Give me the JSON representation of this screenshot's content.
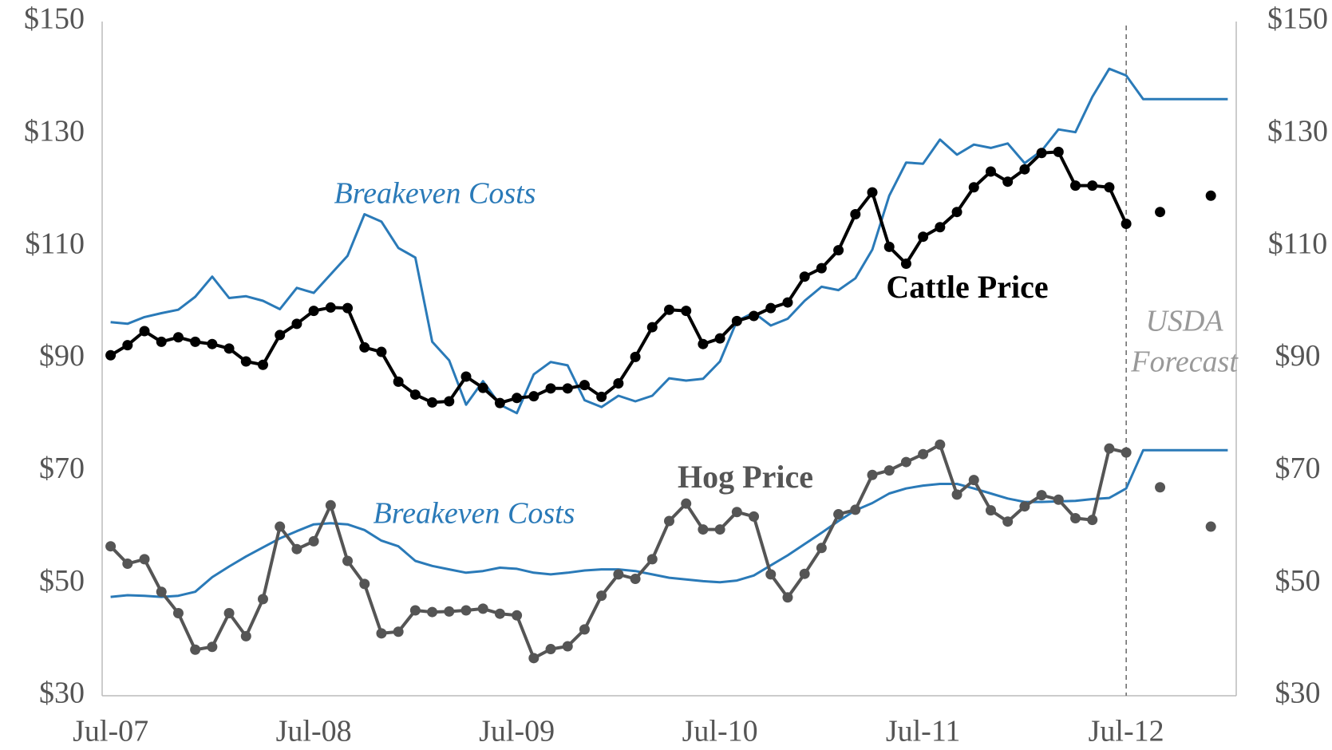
{
  "chart_data": {
    "type": "line",
    "categories": [
      "Jul-07",
      null,
      null,
      null,
      null,
      null,
      null,
      null,
      null,
      null,
      null,
      null,
      "Jul-08",
      null,
      null,
      null,
      null,
      null,
      null,
      null,
      null,
      null,
      null,
      null,
      "Jul-09",
      null,
      null,
      null,
      null,
      null,
      null,
      null,
      null,
      null,
      null,
      null,
      "Jul-10",
      null,
      null,
      null,
      null,
      null,
      null,
      null,
      null,
      null,
      null,
      null,
      "Jul-11",
      null,
      null,
      null,
      null,
      null,
      null,
      null,
      null,
      null,
      null,
      null,
      "Jul-12",
      null,
      null,
      null,
      null,
      null,
      null
    ],
    "series": [
      {
        "name": "Breakeven Costs",
        "color": "#2a7ab8",
        "markers": false,
        "values": [
          96.5,
          96.2,
          97.4,
          98.1,
          98.7,
          101.0,
          104.6,
          100.8,
          101.1,
          100.3,
          98.8,
          102.6,
          101.7,
          105.0,
          108.3,
          115.7,
          114.4,
          109.7,
          108.0,
          93.0,
          89.7,
          81.8,
          86.0,
          81.8,
          80.3,
          87.2,
          89.4,
          88.8,
          82.6,
          81.4,
          83.4,
          82.4,
          83.4,
          86.5,
          86.1,
          86.4,
          89.5,
          96.7,
          98.2,
          95.9,
          97.1,
          100.3,
          102.8,
          102.2,
          104.3,
          109.4,
          119.0,
          124.9,
          124.7,
          129.0,
          126.3,
          128.1,
          127.5,
          128.3,
          124.8,
          127.0,
          130.8,
          130.3,
          136.6,
          141.6,
          140.4,
          136.2,
          136.2,
          136.2,
          136.2,
          136.2,
          136.2
        ]
      },
      {
        "name": "Cattle Price",
        "color": "#000000",
        "markers": true,
        "values": [
          90.6,
          92.4,
          94.9,
          93.0,
          93.8,
          93.0,
          92.6,
          91.8,
          89.5,
          88.9,
          94.2,
          96.2,
          98.5,
          99.1,
          99.0,
          92.0,
          91.2,
          85.9,
          83.6,
          82.2,
          82.4,
          86.8,
          84.8,
          82.1,
          83.0,
          83.3,
          84.7,
          84.7,
          85.3,
          83.2,
          85.6,
          90.3,
          95.6,
          98.7,
          98.5,
          92.6,
          93.6,
          96.7,
          97.6,
          99.0,
          100.0,
          104.6,
          106.1,
          109.3,
          115.7,
          119.6,
          109.9,
          106.9,
          111.7,
          113.4,
          116.1,
          120.5,
          123.3,
          121.5,
          123.7,
          126.6,
          126.8,
          120.8,
          120.8,
          120.5,
          114.0,
          null,
          116.1,
          null,
          null,
          119.0,
          null
        ]
      },
      {
        "name": "Breakeven Costs",
        "color": "#2a7ab8",
        "markers": false,
        "values": [
          47.6,
          47.9,
          47.8,
          47.6,
          47.8,
          48.5,
          51.1,
          53.0,
          54.8,
          56.4,
          58.0,
          59.3,
          60.5,
          60.7,
          60.5,
          59.5,
          57.6,
          56.6,
          54.0,
          53.1,
          52.5,
          51.9,
          52.2,
          52.8,
          52.6,
          51.9,
          51.6,
          51.9,
          52.3,
          52.5,
          52.5,
          52.2,
          51.6,
          51.0,
          50.7,
          50.4,
          50.2,
          50.5,
          51.4,
          53.2,
          55.0,
          57.0,
          59.0,
          61.1,
          63.0,
          64.3,
          66.0,
          66.9,
          67.4,
          67.7,
          67.7,
          66.9,
          66.0,
          65.1,
          64.5,
          64.5,
          64.6,
          64.7,
          65.0,
          65.2,
          66.9,
          73.7,
          73.7,
          73.7,
          73.7,
          73.7,
          73.7
        ]
      },
      {
        "name": "Hog Price",
        "color": "#555555",
        "markers": true,
        "values": [
          56.6,
          53.5,
          54.3,
          48.5,
          44.7,
          38.2,
          38.7,
          44.7,
          40.6,
          47.2,
          60.1,
          56.1,
          57.5,
          63.9,
          54.0,
          49.9,
          41.1,
          41.4,
          45.2,
          44.9,
          45.0,
          45.2,
          45.5,
          44.6,
          44.3,
          36.7,
          38.3,
          38.8,
          41.8,
          47.8,
          51.6,
          50.8,
          54.3,
          61.1,
          64.2,
          59.6,
          59.6,
          62.7,
          61.9,
          51.6,
          47.5,
          51.7,
          56.3,
          62.3,
          63.1,
          69.3,
          70.1,
          71.6,
          73.0,
          74.7,
          65.8,
          68.4,
          63.0,
          61.0,
          63.7,
          65.7,
          64.9,
          61.6,
          61.3,
          74.0,
          73.3,
          null,
          67.1,
          null,
          null,
          60.1,
          null
        ]
      }
    ],
    "annotations": [
      "USDA",
      "Forecast"
    ],
    "ylim": [
      30,
      150
    ],
    "yticks": [
      {
        "value": 30,
        "label": "$30"
      },
      {
        "value": 50,
        "label": "$50"
      },
      {
        "value": 70,
        "label": "$70"
      },
      {
        "value": 90,
        "label": "$90"
      },
      {
        "value": 110,
        "label": "$110"
      },
      {
        "value": 130,
        "label": "$130"
      },
      {
        "value": 150,
        "label": "$150"
      }
    ],
    "y2lim": [
      30,
      150
    ],
    "y2ticks": [
      {
        "value": 30,
        "label": "$30"
      },
      {
        "value": 50,
        "label": "$50"
      },
      {
        "value": 70,
        "label": "$70"
      },
      {
        "value": 90,
        "label": "$90"
      },
      {
        "value": 110,
        "label": "$110"
      },
      {
        "value": 130,
        "label": "$130"
      },
      {
        "value": 150,
        "label": "$150"
      }
    ],
    "grid": false
  }
}
